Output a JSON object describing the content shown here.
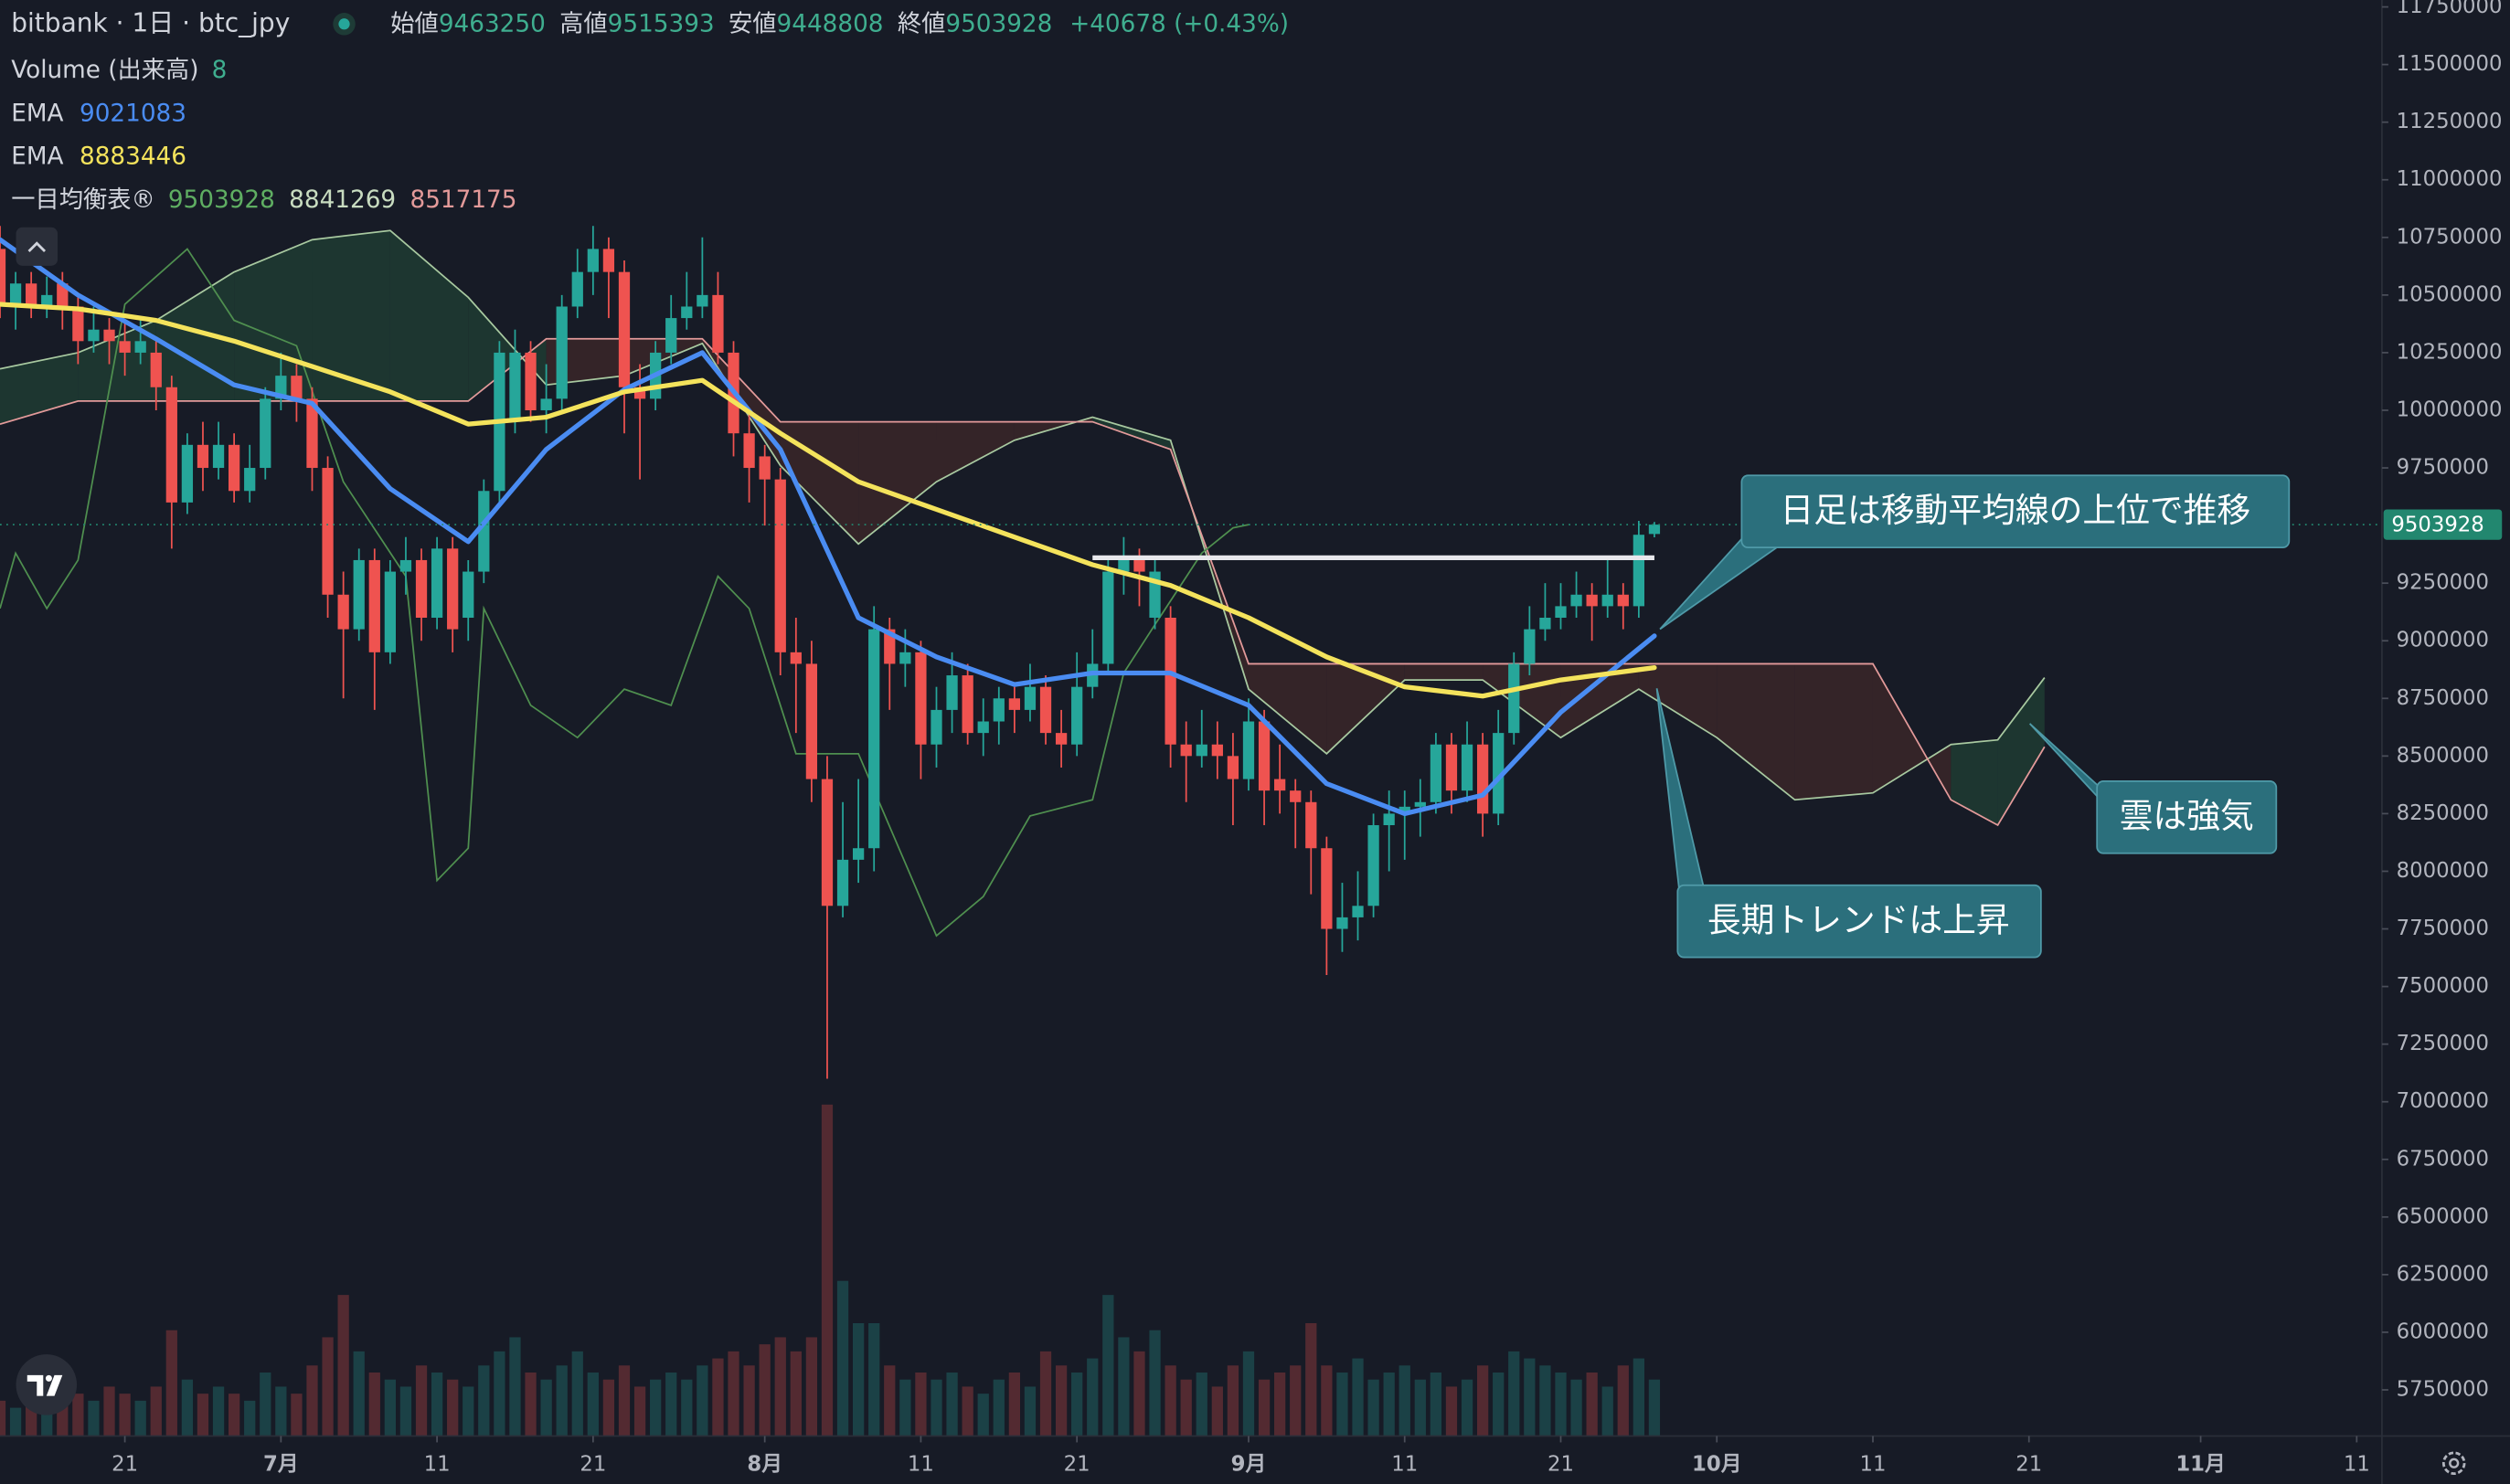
{
  "header": {
    "symbol": "bitbank · 1日 · btc_jpy",
    "ohlc_labels": [
      "始値",
      "高値",
      "安値",
      "終値"
    ],
    "change": "+40678 (+0.43%)"
  },
  "chart_data": {
    "type": "candlestick",
    "up_color": "#26a69a",
    "down_color": "#ef5350",
    "x": [
      "06-13",
      "06-14",
      "06-15",
      "06-16",
      "06-17",
      "06-18",
      "06-19",
      "06-20",
      "06-21",
      "06-22",
      "06-23",
      "06-24",
      "06-25",
      "06-26",
      "06-27",
      "06-28",
      "06-29",
      "06-30",
      "07-01",
      "07-02",
      "07-03",
      "07-04",
      "07-05",
      "07-06",
      "07-07",
      "07-08",
      "07-09",
      "07-10",
      "07-11",
      "07-12",
      "07-13",
      "07-14",
      "07-15",
      "07-16",
      "07-17",
      "07-18",
      "07-19",
      "07-20",
      "07-21",
      "07-22",
      "07-23",
      "07-24",
      "07-25",
      "07-26",
      "07-27",
      "07-28",
      "07-29",
      "07-30",
      "07-31",
      "08-01",
      "08-02",
      "08-03",
      "08-04",
      "08-05",
      "08-06",
      "08-07",
      "08-08",
      "08-09",
      "08-10",
      "08-11",
      "08-12",
      "08-13",
      "08-14",
      "08-15",
      "08-16",
      "08-17",
      "08-18",
      "08-19",
      "08-20",
      "08-21",
      "08-22",
      "08-23",
      "08-24",
      "08-25",
      "08-26",
      "08-27",
      "08-28",
      "08-29",
      "08-30",
      "08-31",
      "09-01",
      "09-02",
      "09-03",
      "09-04",
      "09-05",
      "09-06",
      "09-07",
      "09-08",
      "09-09",
      "09-10",
      "09-11",
      "09-12",
      "09-13",
      "09-14",
      "09-15",
      "09-16",
      "09-17",
      "09-18",
      "09-19",
      "09-20",
      "09-21",
      "09-22",
      "09-23",
      "09-24",
      "09-25",
      "09-26",
      "09-27"
    ],
    "open": [
      10700000,
      10450000,
      10550000,
      10450000,
      10550000,
      10450000,
      10300000,
      10350000,
      10300000,
      10250000,
      10250000,
      10100000,
      9600000,
      9850000,
      9750000,
      9850000,
      9650000,
      9750000,
      10050000,
      10150000,
      10050000,
      9750000,
      9200000,
      9050000,
      9350000,
      8950000,
      9300000,
      9350000,
      9100000,
      9400000,
      9100000,
      9300000,
      9650000,
      9950000,
      10250000,
      10000000,
      10050000,
      10450000,
      10600000,
      10700000,
      10600000,
      10100000,
      10050000,
      10250000,
      10400000,
      10450000,
      10500000,
      10250000,
      9900000,
      9800000,
      9700000,
      8950000,
      8900000,
      8400000,
      7850000,
      8050000,
      8100000,
      9050000,
      8900000,
      8950000,
      8550000,
      8700000,
      8850000,
      8600000,
      8650000,
      8750000,
      8700000,
      8800000,
      8600000,
      8550000,
      8800000,
      8900000,
      9300000,
      9350000,
      9100000,
      9100000,
      8550000,
      8500000,
      8550000,
      8500000,
      8400000,
      8650000,
      8400000,
      8350000,
      8300000,
      8100000,
      7750000,
      7800000,
      7850000,
      8200000,
      8250000,
      8280000,
      8300000,
      8550000,
      8350000,
      8550000,
      8250000,
      8600000,
      8900000,
      9050000,
      9100000,
      9150000,
      9200000,
      9150000,
      9200000,
      9150000,
      9463250
    ],
    "high": [
      10800000,
      10600000,
      10600000,
      10580000,
      10600000,
      10500000,
      10450000,
      10400000,
      10380000,
      10400000,
      10300000,
      10150000,
      9900000,
      9950000,
      9950000,
      9900000,
      9850000,
      10100000,
      10250000,
      10200000,
      10100000,
      9800000,
      9300000,
      9400000,
      9400000,
      9350000,
      9450000,
      9400000,
      9450000,
      9450000,
      9350000,
      9700000,
      10300000,
      10350000,
      10300000,
      10200000,
      10500000,
      10700000,
      10800000,
      10750000,
      10650000,
      10200000,
      10300000,
      10500000,
      10600000,
      10750000,
      10600000,
      10300000,
      10000000,
      9850000,
      9750000,
      9100000,
      9000000,
      8500000,
      8300000,
      8400000,
      9150000,
      9100000,
      9050000,
      9000000,
      8800000,
      8950000,
      8900000,
      8750000,
      8800000,
      8800000,
      8900000,
      8850000,
      8700000,
      8950000,
      9050000,
      9350000,
      9450000,
      9400000,
      9350000,
      9150000,
      8650000,
      8700000,
      8650000,
      8600000,
      8750000,
      8700000,
      8550000,
      8400000,
      8350000,
      8150000,
      7950000,
      8000000,
      8250000,
      8350000,
      8350000,
      8400000,
      8600000,
      8600000,
      8650000,
      8600000,
      8700000,
      8950000,
      9150000,
      9250000,
      9250000,
      9300000,
      9250000,
      9350000,
      9250000,
      9520000,
      9515393
    ],
    "low": [
      10400000,
      10350000,
      10400000,
      10400000,
      10350000,
      10200000,
      10250000,
      10200000,
      10150000,
      10200000,
      10000000,
      9400000,
      9550000,
      9650000,
      9700000,
      9600000,
      9600000,
      9700000,
      10000000,
      9950000,
      9650000,
      9100000,
      8750000,
      9000000,
      8700000,
      8900000,
      9200000,
      9000000,
      9050000,
      8950000,
      9000000,
      9250000,
      9600000,
      9900000,
      9950000,
      9900000,
      10000000,
      10400000,
      10500000,
      10400000,
      9900000,
      9700000,
      10000000,
      10200000,
      10350000,
      10400000,
      10200000,
      9800000,
      9600000,
      9500000,
      8850000,
      8600000,
      8300000,
      7100000,
      7800000,
      7950000,
      8000000,
      8700000,
      8800000,
      8400000,
      8450000,
      8600000,
      8550000,
      8500000,
      8550000,
      8600000,
      8650000,
      8550000,
      8450000,
      8500000,
      8750000,
      8850000,
      9200000,
      9150000,
      9050000,
      8450000,
      8300000,
      8450000,
      8400000,
      8200000,
      8350000,
      8200000,
      8250000,
      8100000,
      7900000,
      7550000,
      7650000,
      7700000,
      7800000,
      8000000,
      8050000,
      8150000,
      8250000,
      8250000,
      8300000,
      8150000,
      8200000,
      8550000,
      8850000,
      9000000,
      9050000,
      9100000,
      9000000,
      9100000,
      9050000,
      9100000,
      9448808
    ],
    "close": [
      10450000,
      10550000,
      10450000,
      10500000,
      10450000,
      10300000,
      10350000,
      10300000,
      10250000,
      10300000,
      10100000,
      9600000,
      9850000,
      9750000,
      9850000,
      9650000,
      9750000,
      10050000,
      10150000,
      10050000,
      9750000,
      9200000,
      9050000,
      9350000,
      8950000,
      9300000,
      9350000,
      9100000,
      9400000,
      9050000,
      9300000,
      9650000,
      10250000,
      10250000,
      10000000,
      10050000,
      10450000,
      10600000,
      10700000,
      10600000,
      10100000,
      10050000,
      10250000,
      10400000,
      10450000,
      10500000,
      10250000,
      9900000,
      9750000,
      9700000,
      8950000,
      8900000,
      8400000,
      7850000,
      8050000,
      8100000,
      9050000,
      8900000,
      8950000,
      8550000,
      8700000,
      8850000,
      8600000,
      8650000,
      8750000,
      8700000,
      8800000,
      8600000,
      8550000,
      8800000,
      8900000,
      9300000,
      9350000,
      9300000,
      9300000,
      8550000,
      8500000,
      8550000,
      8500000,
      8400000,
      8650000,
      8350000,
      8350000,
      8300000,
      8100000,
      7750000,
      7800000,
      7850000,
      8200000,
      8250000,
      8280000,
      8300000,
      8550000,
      8350000,
      8550000,
      8250000,
      8600000,
      8900000,
      9050000,
      9100000,
      9150000,
      9200000,
      9150000,
      9200000,
      9150000,
      9460000,
      9503928
    ],
    "volume_label": "Volume (出来高)",
    "volume": [
      5,
      4,
      6,
      8,
      5,
      6,
      5,
      7,
      6,
      5,
      7,
      15,
      8,
      6,
      7,
      6,
      5,
      9,
      7,
      6,
      10,
      14,
      20,
      12,
      9,
      8,
      7,
      10,
      9,
      8,
      7,
      10,
      12,
      14,
      9,
      8,
      10,
      12,
      9,
      8,
      10,
      7,
      8,
      9,
      8,
      10,
      11,
      12,
      10,
      13,
      14,
      12,
      14,
      47,
      22,
      16,
      16,
      10,
      8,
      9,
      8,
      9,
      7,
      6,
      8,
      9,
      7,
      12,
      10,
      9,
      11,
      20,
      14,
      12,
      15,
      10,
      8,
      9,
      7,
      10,
      12,
      8,
      9,
      10,
      16,
      10,
      9,
      11,
      8,
      9,
      10,
      8,
      9,
      7,
      8,
      10,
      9,
      12,
      11,
      10,
      9,
      8,
      9,
      7,
      10,
      11,
      8
    ],
    "series": [
      {
        "name": "EMA",
        "color": "#4a8cf2",
        "x": [
          "06-13",
          "06-18",
          "06-23",
          "06-28",
          "07-03",
          "07-08",
          "07-13",
          "07-18",
          "07-23",
          "07-28",
          "08-02",
          "08-07",
          "08-12",
          "08-17",
          "08-22",
          "08-27",
          "09-01",
          "09-06",
          "09-11",
          "09-16",
          "09-21",
          "09-27"
        ],
        "values": [
          10740000,
          10500000,
          10310000,
          10110000,
          10030000,
          9660000,
          9430000,
          9830000,
          10090000,
          10250000,
          9830000,
          9100000,
          8930000,
          8810000,
          8860000,
          8860000,
          8720000,
          8380000,
          8250000,
          8330000,
          8690000,
          9021083
        ]
      },
      {
        "name": "EMA",
        "color": "#f4e35c",
        "x": [
          "06-13",
          "06-18",
          "06-23",
          "06-28",
          "07-03",
          "07-08",
          "07-13",
          "07-18",
          "07-23",
          "07-28",
          "08-02",
          "08-07",
          "08-12",
          "08-17",
          "08-22",
          "08-27",
          "09-01",
          "09-06",
          "09-11",
          "09-16",
          "09-21",
          "09-27"
        ],
        "values": [
          10460000,
          10440000,
          10390000,
          10300000,
          10190000,
          10080000,
          9940000,
          9970000,
          10080000,
          10130000,
          9900000,
          9690000,
          9570000,
          9450000,
          9330000,
          9240000,
          9100000,
          8930000,
          8800000,
          8760000,
          8830000,
          8883446
        ]
      }
    ],
    "ichimoku": {
      "name": "一目均衡表®",
      "legend_values": [
        8841269,
        8517175
      ],
      "chikou": {
        "color": "#4f8f4f",
        "x": [
          "06-13",
          "06-14",
          "06-16",
          "06-18",
          "06-21",
          "06-25",
          "06-28",
          "07-02",
          "07-05",
          "07-09",
          "07-11",
          "07-13",
          "07-14",
          "07-17",
          "07-20",
          "07-23",
          "07-26",
          "07-29",
          "07-31",
          "08-03",
          "08-07",
          "08-12",
          "08-15",
          "08-18",
          "08-22",
          "08-24",
          "08-26",
          "08-29",
          "08-31",
          "09-01"
        ],
        "values": [
          9140000,
          9380000,
          9140000,
          9350000,
          10460000,
          10700000,
          10390000,
          10280000,
          9690000,
          9280000,
          7960000,
          8100000,
          9140000,
          8720000,
          8580000,
          8790000,
          8720000,
          9280000,
          9140000,
          8510000,
          8510000,
          7720000,
          7890000,
          8240000,
          8310000,
          8860000,
          9070000,
          9380000,
          9490000,
          9503928
        ]
      },
      "cloud": {
        "span_a_color": "#a8c9a0",
        "span_b_color": "#e39a9a",
        "up_fill": "#1f3b33",
        "down_fill": "#3a2629",
        "x": [
          "06-13",
          "06-18",
          "06-23",
          "06-28",
          "07-03",
          "07-08",
          "07-13",
          "07-18",
          "07-23",
          "07-28",
          "08-02",
          "08-07",
          "08-12",
          "08-17",
          "08-22",
          "08-27",
          "09-01",
          "09-06",
          "09-11",
          "09-16",
          "09-21",
          "09-26",
          "10-01",
          "10-06",
          "10-11",
          "10-16",
          "10-19",
          "10-22"
        ],
        "span_a": [
          10180000,
          10250000,
          10390000,
          10600000,
          10740000,
          10780000,
          10490000,
          10110000,
          10150000,
          10290000,
          9760000,
          9420000,
          9690000,
          9870000,
          9970000,
          9870000,
          8790000,
          8510000,
          8830000,
          8830000,
          8580000,
          8790000,
          8580000,
          8310000,
          8340000,
          8550000,
          8570000,
          8840000
        ],
        "span_b": [
          9940000,
          10040000,
          10040000,
          10040000,
          10040000,
          10040000,
          10040000,
          10310000,
          10310000,
          10310000,
          9950000,
          9950000,
          9950000,
          9950000,
          9950000,
          9830000,
          8900000,
          8900000,
          8900000,
          8900000,
          8900000,
          8900000,
          8900000,
          8900000,
          8900000,
          8310000,
          8200000,
          8540000
        ]
      }
    },
    "drawn_line": {
      "color": "#e8e8ec",
      "x": [
        "08-22",
        "09-27"
      ],
      "values": [
        9360000,
        9360000
      ]
    },
    "last_price_color": "#22876f",
    "ylim": [
      5550000,
      11780000
    ],
    "yticks": [
      11750000,
      11500000,
      11250000,
      11000000,
      10750000,
      10500000,
      10250000,
      10000000,
      9750000,
      9250000,
      9000000,
      8750000,
      8500000,
      8250000,
      8000000,
      7750000,
      7500000,
      7250000,
      7000000,
      6750000,
      6500000,
      6250000,
      6000000,
      5750000
    ],
    "xticks": [
      {
        "value": "06-21",
        "label": "21"
      },
      {
        "value": "07-01",
        "label": "7月"
      },
      {
        "value": "07-11",
        "label": "11"
      },
      {
        "value": "07-21",
        "label": "21"
      },
      {
        "value": "08-01",
        "label": "8月"
      },
      {
        "value": "08-11",
        "label": "11"
      },
      {
        "value": "08-21",
        "label": "21"
      },
      {
        "value": "09-01",
        "label": "9月"
      },
      {
        "value": "09-11",
        "label": "11"
      },
      {
        "value": "09-21",
        "label": "21"
      },
      {
        "value": "10-01",
        "label": "10月"
      },
      {
        "value": "10-11",
        "label": "11"
      },
      {
        "value": "10-21",
        "label": "21"
      },
      {
        "value": "11-01",
        "label": "11月"
      },
      {
        "value": "11-11",
        "label": "11"
      }
    ],
    "annotations": [
      "日足は移動平均線の上位で推移",
      "長期トレンドは上昇",
      "雲は強気"
    ]
  }
}
